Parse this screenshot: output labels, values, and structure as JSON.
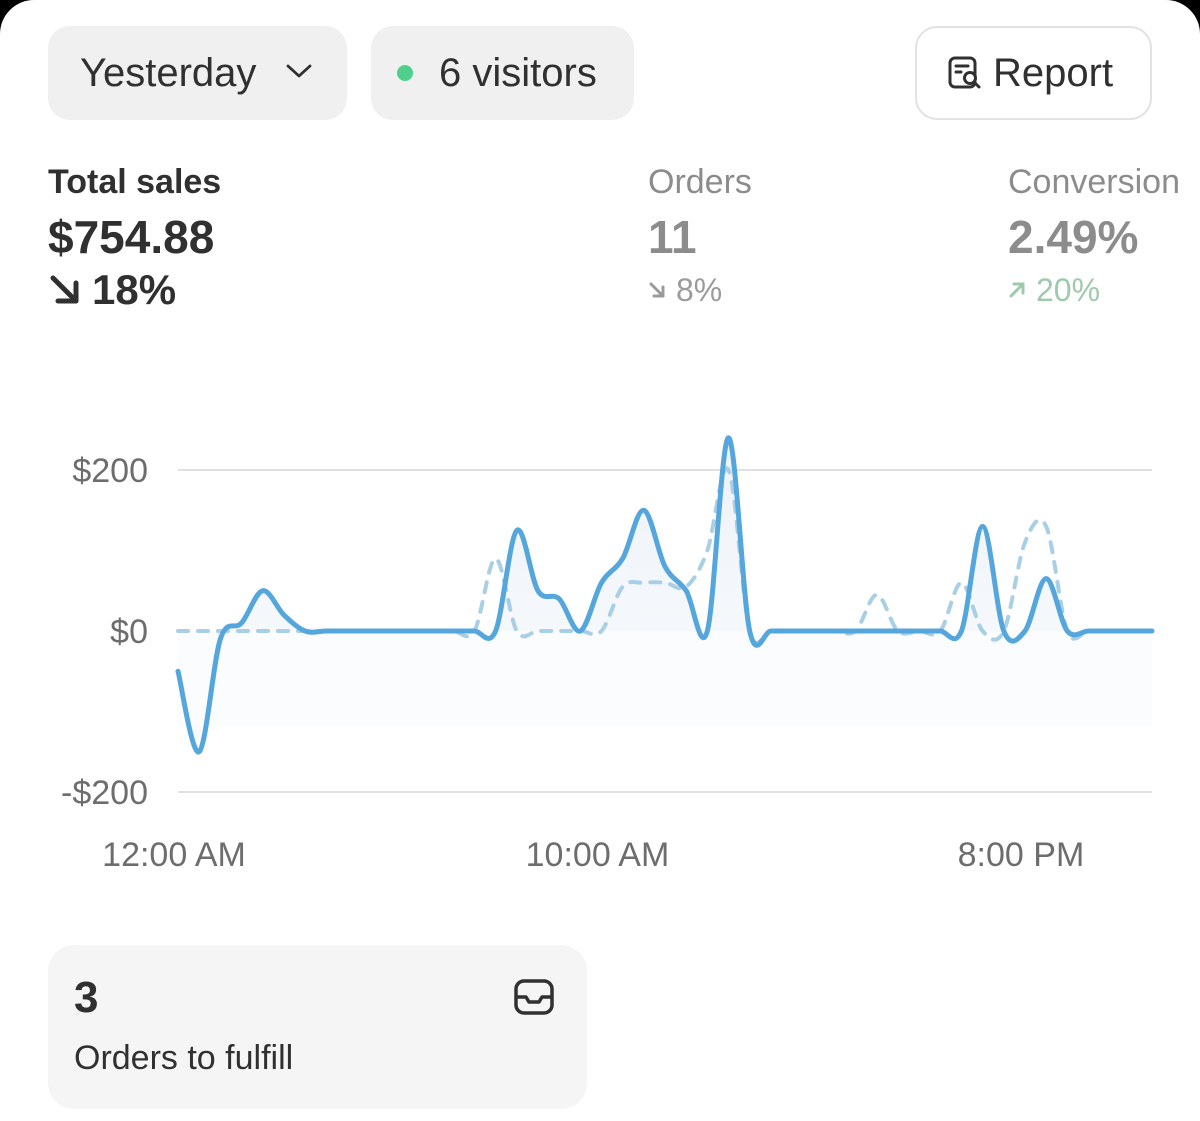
{
  "toolbar": {
    "date_label": "Yesterday",
    "visitors_label": "6 visitors",
    "report_label": "Report"
  },
  "metrics": {
    "sales": {
      "label": "Total sales",
      "value": "$754.88",
      "change": "18%",
      "direction": "down"
    },
    "orders": {
      "label": "Orders",
      "value": "11",
      "change": "8%",
      "direction": "down"
    },
    "conversion": {
      "label": "Conversion",
      "value": "2.49%",
      "change": "20%",
      "direction": "up"
    }
  },
  "colors": {
    "line": "#55a6dc",
    "comparison": "#a9cfe6",
    "online_dot": "#4fd08a",
    "up_change": "#9fc9ad"
  },
  "chart_data": {
    "type": "line",
    "ylim": [
      -200,
      200
    ],
    "y_ticks": [
      "$200",
      "$0",
      "-$200"
    ],
    "y_tick_values": [
      200,
      0,
      -200
    ],
    "x_ticks": [
      "12:00 AM",
      "10:00 AM",
      "8:00 PM"
    ],
    "x_tick_values": [
      0,
      10,
      20
    ],
    "grid": true,
    "series": [
      {
        "style": "solid",
        "x": [
          0,
          0.5,
          1,
          1.5,
          2,
          2.5,
          3,
          3.5,
          4,
          4.5,
          5,
          5.5,
          6,
          6.5,
          7,
          7.5,
          8,
          8.5,
          9,
          9.5,
          10,
          10.5,
          11,
          11.5,
          12,
          12.5,
          13,
          13.5,
          14,
          14.5,
          15,
          15.5,
          16,
          16.5,
          17,
          17.5,
          18,
          18.5,
          19,
          19.5,
          20,
          20.5,
          21,
          21.5,
          22,
          22.5,
          23
        ],
        "values": [
          -50,
          -150,
          -10,
          10,
          50,
          20,
          0,
          0,
          0,
          0,
          0,
          0,
          0,
          0,
          0,
          0,
          125,
          50,
          40,
          0,
          60,
          90,
          150,
          80,
          50,
          0,
          240,
          0,
          0,
          0,
          0,
          0,
          0,
          0,
          0,
          0,
          0,
          0,
          130,
          0,
          0,
          65,
          0,
          0,
          0,
          0,
          0
        ]
      },
      {
        "style": "dashed",
        "x": [
          0,
          0.5,
          1,
          1.5,
          2,
          2.5,
          3,
          3.5,
          4,
          4.5,
          5,
          5.5,
          6,
          6.5,
          7,
          7.5,
          8,
          8.5,
          9,
          9.5,
          10,
          10.5,
          11,
          11.5,
          12,
          12.5,
          13,
          13.5,
          14,
          14.5,
          15,
          15.5,
          16,
          16.5,
          17,
          17.5,
          18,
          18.5,
          19,
          19.5,
          20,
          20.5,
          21,
          21.5,
          22,
          22.5,
          23
        ],
        "values": [
          0,
          0,
          0,
          0,
          0,
          0,
          0,
          0,
          0,
          0,
          0,
          0,
          0,
          0,
          0,
          90,
          0,
          0,
          0,
          0,
          0,
          55,
          60,
          60,
          55,
          100,
          200,
          0,
          0,
          0,
          0,
          0,
          0,
          45,
          0,
          0,
          0,
          60,
          0,
          0,
          110,
          130,
          0,
          0,
          0,
          0,
          0
        ]
      }
    ]
  },
  "fulfill": {
    "count": "3",
    "label": "Orders to fulfill"
  }
}
